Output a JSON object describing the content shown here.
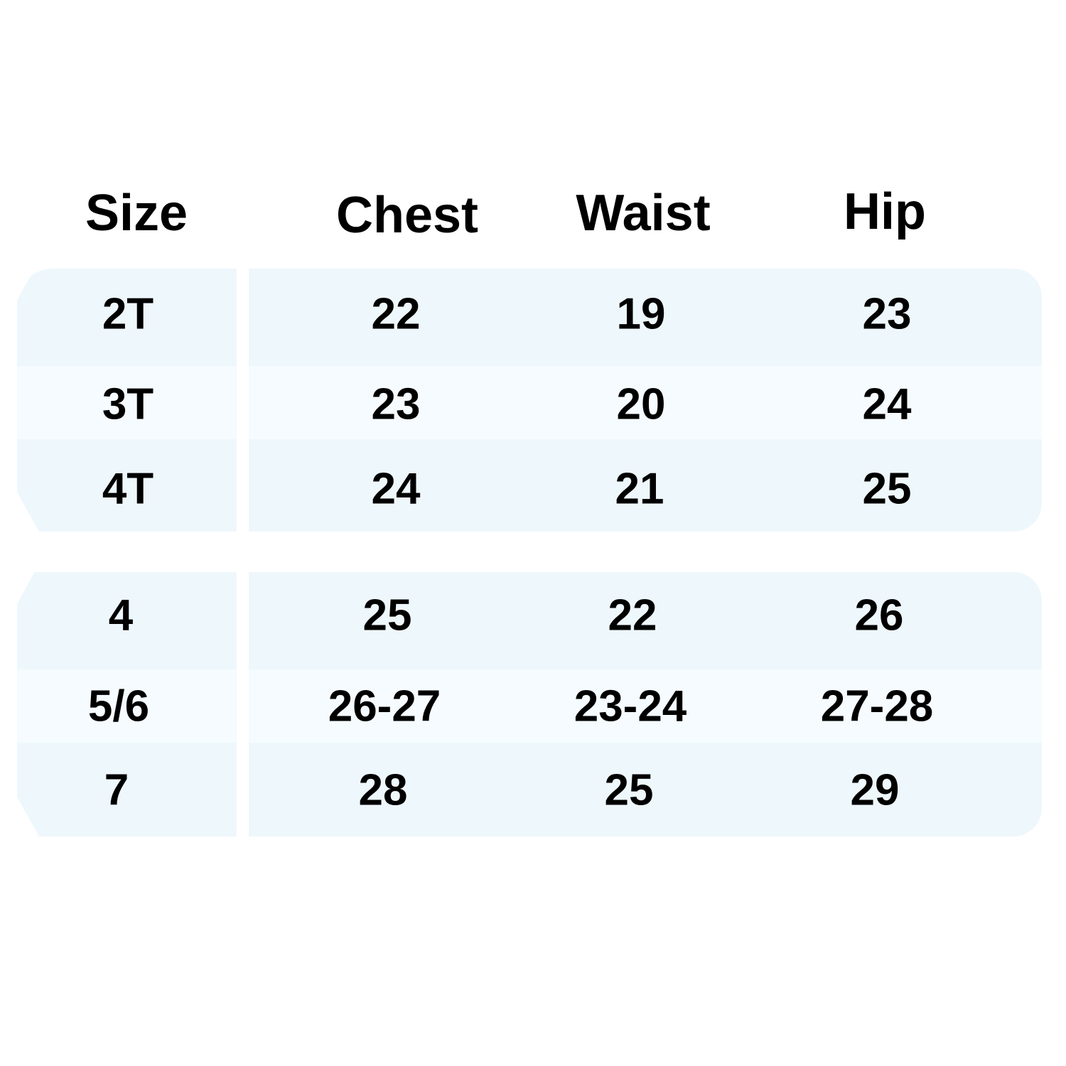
{
  "headers": {
    "size": "Size",
    "chest": "Chest",
    "waist": "Waist",
    "hip": "Hip"
  },
  "colors": {
    "row_dark": "#eef7fc",
    "row_light": "#f5fbfe",
    "text": "#000000"
  },
  "groups": [
    {
      "rows": [
        {
          "size": "2T",
          "chest": "22",
          "waist": "19",
          "hip": "23"
        },
        {
          "size": "3T",
          "chest": "23",
          "waist": "20",
          "hip": "24"
        },
        {
          "size": "4T",
          "chest": "24",
          "waist": "21",
          "hip": "25"
        }
      ]
    },
    {
      "rows": [
        {
          "size": "4",
          "chest": "25",
          "waist": "22",
          "hip": "26"
        },
        {
          "size": "5/6",
          "chest": "26-27",
          "waist": "23-24",
          "hip": "27-28"
        },
        {
          "size": "7",
          "chest": "28",
          "waist": "25",
          "hip": "29"
        }
      ]
    }
  ]
}
